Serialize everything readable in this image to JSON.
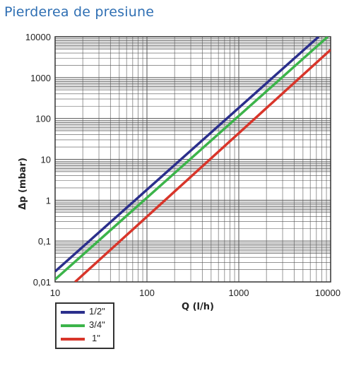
{
  "title": "Pierderea de presiune",
  "colors": {
    "grid_band": "#dcdcdc",
    "grid_line": "#555555",
    "title": "#2f6fb3"
  },
  "chart_data": {
    "type": "line",
    "xlabel": "Q  (l/h)",
    "ylabel": "Δp (mbar)",
    "x_scale": "log",
    "y_scale": "log",
    "xlim": [
      10,
      10000
    ],
    "ylim": [
      0.01,
      10000
    ],
    "x_tick_labels": [
      "10",
      "100",
      "1000",
      "10000"
    ],
    "y_tick_labels": [
      "10000",
      "1000",
      "100",
      "10",
      "1",
      "0,1",
      "0,01"
    ],
    "legend_position": "bottom-left",
    "series": [
      {
        "name": "1/2\"",
        "color": "#2b2f8c",
        "x": [
          10,
          7400
        ],
        "y": [
          0.018,
          10000
        ]
      },
      {
        "name": "3/4\"",
        "color": "#3cb44a",
        "x": [
          10,
          9300
        ],
        "y": [
          0.0115,
          10000
        ]
      },
      {
        "name": "1\"",
        "color": "#d8352a",
        "x": [
          16.5,
          10000
        ],
        "y": [
          0.01,
          4800
        ]
      }
    ]
  }
}
